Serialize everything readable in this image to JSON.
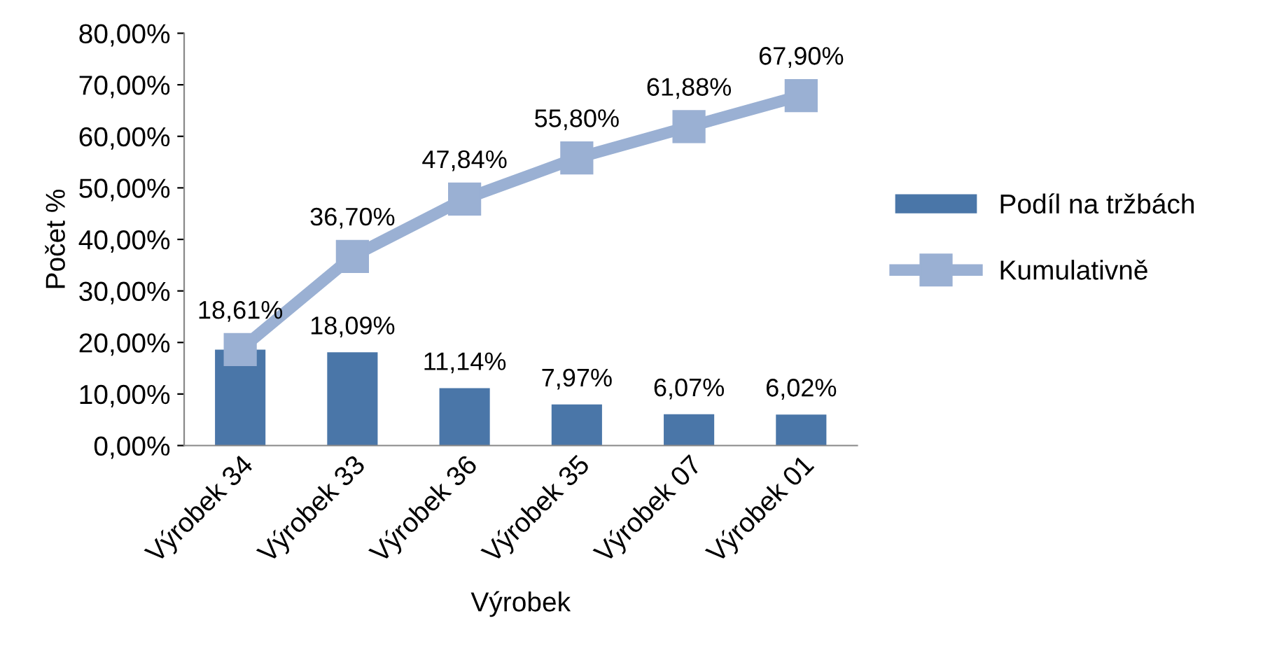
{
  "chart_data": {
    "type": "bar",
    "xlabel": "Výrobek",
    "ylabel": "Počet %",
    "categories": [
      "Výrobek 34",
      "Výrobek 33",
      "Výrobek 36",
      "Výrobek 35",
      "Výrobek 07",
      "Výrobek 01"
    ],
    "series": [
      {
        "name": "Podíl na tržbách",
        "color": "#4a76a8",
        "values": [
          18.61,
          18.09,
          11.14,
          7.97,
          6.07,
          6.02
        ],
        "value_labels": [
          null,
          "18,09%",
          "11,14%",
          "7,97%",
          "6,07%",
          "6,02%"
        ]
      },
      {
        "name": "Kumulativně",
        "type": "line",
        "color": "#9ab0d3",
        "marker": "square",
        "line_style": "solid",
        "values": [
          18.61,
          36.7,
          47.84,
          55.8,
          61.88,
          67.9
        ],
        "value_labels": [
          "18,61%",
          "36,70%",
          "47,84%",
          "55,80%",
          "61,88%",
          "67,90%"
        ]
      }
    ],
    "ylim": [
      0,
      80
    ],
    "yticks": [
      {
        "value": 0,
        "label": "0,00%"
      },
      {
        "value": 10,
        "label": "10,00%"
      },
      {
        "value": 20,
        "label": "20,00%"
      },
      {
        "value": 30,
        "label": "30,00%"
      },
      {
        "value": 40,
        "label": "40,00%"
      },
      {
        "value": 50,
        "label": "50,00%"
      },
      {
        "value": 60,
        "label": "60,00%"
      },
      {
        "value": 70,
        "label": "70,00%"
      },
      {
        "value": 80,
        "label": "80,00%"
      }
    ],
    "grid": false,
    "legend": "right"
  }
}
